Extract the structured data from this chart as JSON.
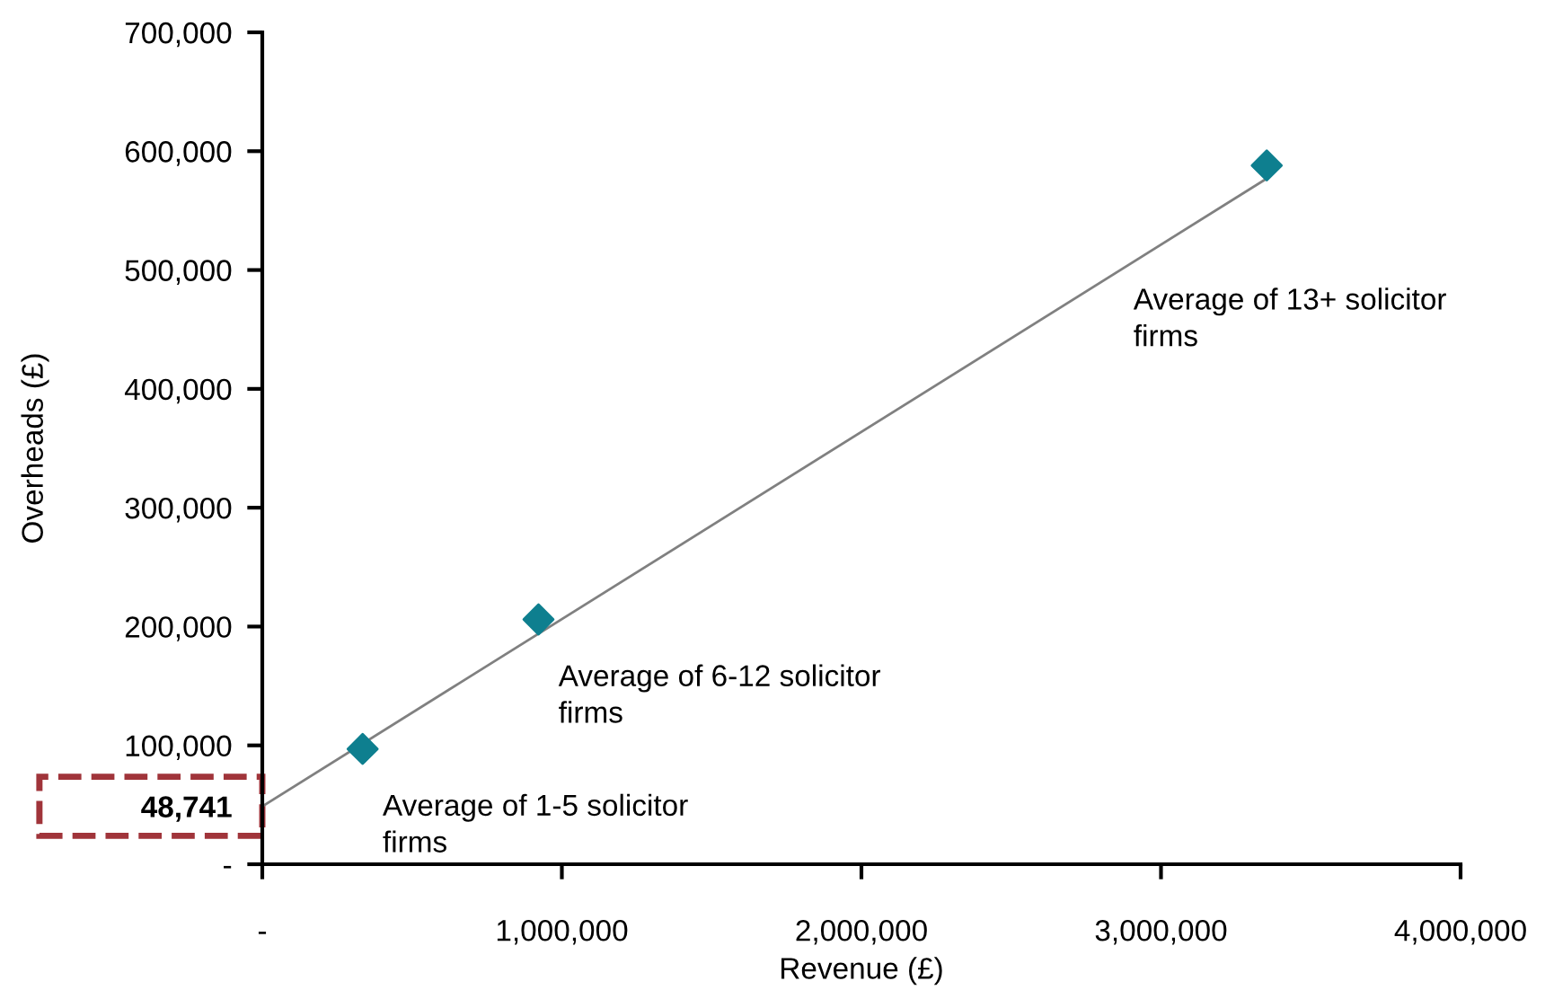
{
  "chart_data": {
    "type": "scatter",
    "xlabel": "Revenue (£)",
    "ylabel": "Overheads (£)",
    "xlim": [
      0,
      4000000
    ],
    "ylim": [
      0,
      700000
    ],
    "xticks": [
      {
        "value": 0,
        "label": "-"
      },
      {
        "value": 1000000,
        "label": "1,000,000"
      },
      {
        "value": 2000000,
        "label": "2,000,000"
      },
      {
        "value": 3000000,
        "label": "3,000,000"
      },
      {
        "value": 4000000,
        "label": "4,000,000"
      }
    ],
    "yticks": [
      {
        "value": 0,
        "label": "-"
      },
      {
        "value": 100000,
        "label": "100,000"
      },
      {
        "value": 200000,
        "label": "200,000"
      },
      {
        "value": 300000,
        "label": "300,000"
      },
      {
        "value": 400000,
        "label": "400,000"
      },
      {
        "value": 500000,
        "label": "500,000"
      },
      {
        "value": 600000,
        "label": "600,000"
      },
      {
        "value": 700000,
        "label": "700,000"
      },
      {
        "value": 48741,
        "label": "48,741"
      }
    ],
    "grid": false,
    "legend": false,
    "series": [
      {
        "type": "line",
        "color": "#808080",
        "marker": "none",
        "x": [
          0,
          3353000
        ],
        "values": [
          48741,
          577000
        ]
      },
      {
        "color": "#0e7f8f",
        "marker": "diamond",
        "x": [
          335000,
          922000,
          3353000
        ],
        "values": [
          97000,
          206000,
          588000
        ]
      }
    ],
    "annotations": [
      {
        "text": "Average of 1-5 solicitor\nfirms",
        "x": 335000,
        "y": 97000
      },
      {
        "text": "Average of 6-12 solicitor\nfirms",
        "x": 922000,
        "y": 206000
      },
      "Average of 13+ solicitor\nfirms"
    ]
  }
}
